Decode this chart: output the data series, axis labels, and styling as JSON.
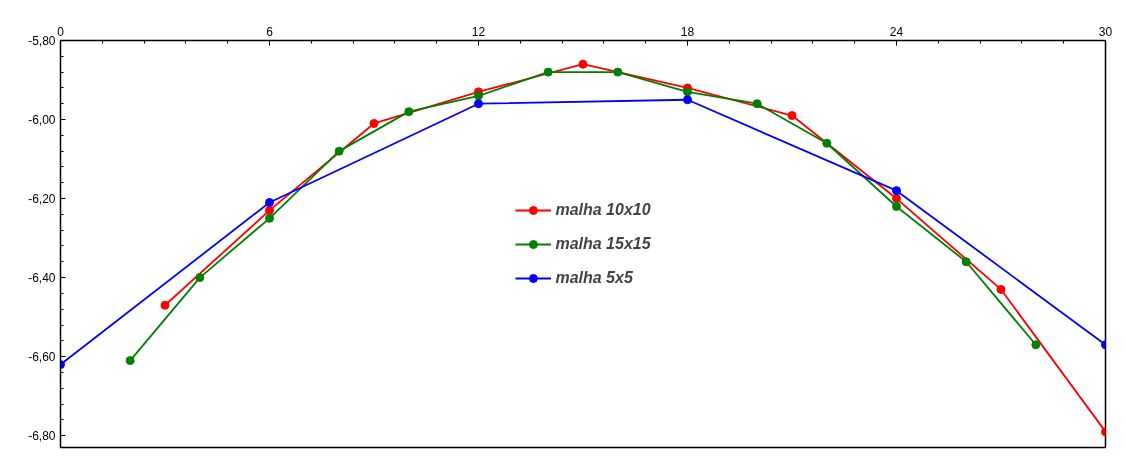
{
  "chart_data": {
    "type": "line",
    "xlim": [
      0,
      30
    ],
    "xticks": [
      0,
      6,
      12,
      18,
      24,
      30
    ],
    "ylim": [
      -6.83,
      -5.8
    ],
    "yticks": [
      {
        "value": -5.8,
        "label": "-5,80"
      },
      {
        "value": -6.0,
        "label": "-6,00"
      },
      {
        "value": -6.2,
        "label": "-6,20"
      },
      {
        "value": -6.4,
        "label": "-6,40"
      },
      {
        "value": -6.6,
        "label": "-6,60"
      },
      {
        "value": -6.8,
        "label": "-6,80"
      }
    ],
    "grid": false,
    "legend": "center",
    "marker": "circle",
    "line_style": "solid",
    "series": [
      {
        "name": "malha 10x10",
        "color": "#ff0000",
        "x": [
          3,
          6,
          9,
          12,
          15,
          18,
          21,
          24,
          27,
          30
        ],
        "values": [
          -6.47,
          -6.23,
          -6.01,
          -5.93,
          -5.86,
          -5.92,
          -5.99,
          -6.2,
          -6.43,
          -6.79
        ]
      },
      {
        "name": "malha 15x15",
        "color": "#008000",
        "x": [
          2,
          4,
          6,
          8,
          10,
          12,
          14,
          16,
          18,
          20,
          22,
          24,
          26,
          28
        ],
        "values": [
          -6.61,
          -6.4,
          -6.25,
          -6.08,
          -5.98,
          -5.94,
          -5.88,
          -5.88,
          -5.93,
          -5.96,
          -6.06,
          -6.22,
          -6.36,
          -6.57
        ]
      },
      {
        "name": "malha 5x5",
        "color": "#0000ff",
        "x": [
          0,
          6,
          12,
          18,
          24,
          30
        ],
        "values": [
          -6.62,
          -6.21,
          -5.96,
          -5.95,
          -6.18,
          -6.57
        ]
      }
    ]
  }
}
